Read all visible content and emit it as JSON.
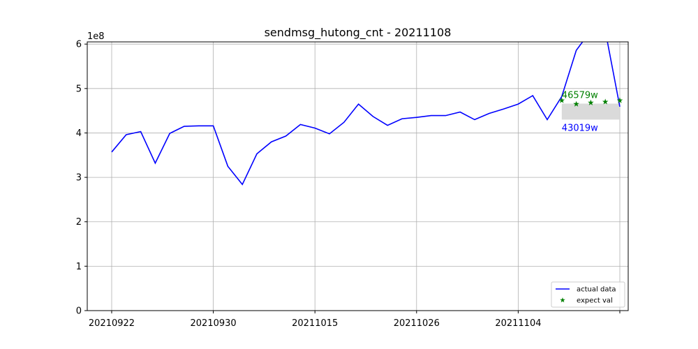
{
  "chart_data": {
    "type": "line",
    "title": "sendmsg_hutong_cnt - 20211108",
    "y_multiplier": "1e8",
    "xlabel": "",
    "ylabel": "",
    "ylim": [
      0,
      6.05
    ],
    "x_range": [
      -1,
      35
    ],
    "yticks": [
      0,
      1,
      2,
      3,
      4,
      5,
      6
    ],
    "xticks": [
      {
        "index": 0,
        "label": "20210922"
      },
      {
        "index": 7,
        "label": "20210930"
      },
      {
        "index": 14,
        "label": "20211015"
      },
      {
        "index": 21,
        "label": "20211026"
      },
      {
        "index": 28,
        "label": "20211104"
      },
      {
        "index": 35,
        "label": ""
      }
    ],
    "grid": true,
    "legend_position": "lower-right",
    "colors": {
      "actual": "#0000ff",
      "expect": "#008000",
      "band": "#d3d3d3",
      "grid": "#b0b0b0"
    },
    "series": [
      {
        "name": "actual data",
        "kind": "line",
        "x": [
          0,
          1,
          2,
          3,
          4,
          5,
          6,
          7,
          8,
          9,
          10,
          11,
          12,
          13,
          14,
          15,
          16,
          17,
          18,
          19,
          20,
          21,
          22,
          23,
          24,
          25,
          26,
          27,
          28,
          29,
          30,
          31,
          32,
          33,
          34,
          35
        ],
        "values": [
          3.57,
          3.96,
          4.03,
          3.32,
          3.99,
          4.15,
          4.16,
          4.16,
          3.25,
          2.84,
          3.53,
          3.8,
          3.93,
          4.19,
          4.11,
          3.98,
          4.24,
          4.65,
          4.37,
          4.17,
          4.32,
          4.35,
          4.39,
          4.39,
          4.47,
          4.3,
          4.44,
          4.54,
          4.65,
          4.84,
          4.3,
          4.82,
          5.86,
          6.3,
          6.3,
          4.59
        ]
      },
      {
        "name": "expect val",
        "kind": "scatter",
        "x": [
          31,
          32,
          33,
          34,
          35
        ],
        "values": [
          4.73,
          4.65,
          4.68,
          4.7,
          4.73
        ]
      }
    ],
    "band": {
      "x_start": 31,
      "x_end": 35,
      "lower": 4.3,
      "upper": 4.66
    },
    "annotations": [
      {
        "text": "46579w",
        "x": 31,
        "y": 4.66,
        "color": "#008000",
        "position": "above"
      },
      {
        "text": "43019w",
        "x": 31,
        "y": 4.3,
        "color": "#0000ff",
        "position": "below"
      }
    ]
  }
}
